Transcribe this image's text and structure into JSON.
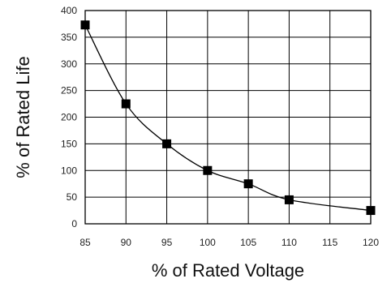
{
  "chart_data": {
    "type": "line",
    "title": "",
    "xlabel": "% of Rated Voltage",
    "ylabel": "% of Rated Life",
    "xlim": [
      85,
      120
    ],
    "ylim": [
      0,
      400
    ],
    "xticks": [
      "85",
      "90",
      "95",
      "100",
      "105",
      "110",
      "115",
      "120"
    ],
    "yticks": [
      "0",
      "50",
      "100",
      "150",
      "200",
      "250",
      "300",
      "350",
      "400"
    ],
    "grid": true,
    "legend": "none",
    "marker": "square",
    "line_color": "#000000",
    "marker_color": "#000000",
    "series": [
      {
        "x": [
          85,
          90,
          95,
          100,
          105,
          110,
          120
        ],
        "y": [
          373,
          225,
          150,
          100,
          75,
          45,
          25
        ]
      }
    ]
  }
}
